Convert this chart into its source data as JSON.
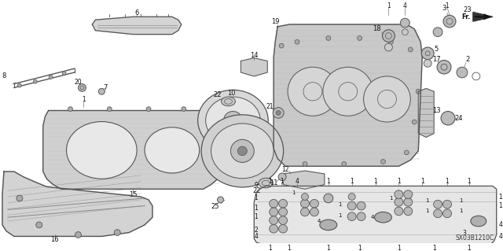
{
  "bg_color": "#ffffff",
  "diagram_code": "SX03B1210C",
  "fig_width": 6.4,
  "fig_height": 3.19,
  "dpi": 100,
  "line_color": "#555555",
  "label_color": "#111111",
  "label_fs": 5.5,
  "leader_color": "#777777"
}
